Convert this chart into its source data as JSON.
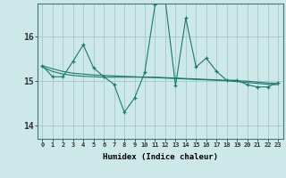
{
  "xlabel": "Humidex (Indice chaleur)",
  "ylabel": "",
  "background_color": "#cce8e8",
  "grid_color": "#aacccc",
  "line_color": "#1a7a6e",
  "xlim": [
    -0.5,
    23.5
  ],
  "ylim": [
    13.7,
    16.75
  ],
  "yticks": [
    14,
    15,
    16
  ],
  "xtick_labels": [
    "0",
    "1",
    "2",
    "3",
    "4",
    "5",
    "6",
    "7",
    "8",
    "9",
    "10",
    "11",
    "12",
    "13",
    "14",
    "15",
    "16",
    "17",
    "18",
    "19",
    "20",
    "21",
    "22",
    "23"
  ],
  "main_series": [
    15.35,
    15.1,
    15.1,
    15.45,
    15.82,
    15.3,
    15.1,
    14.93,
    14.3,
    14.62,
    15.2,
    16.72,
    16.82,
    14.9,
    16.42,
    15.32,
    15.52,
    15.22,
    15.02,
    15.02,
    14.92,
    14.87,
    14.87,
    14.97
  ],
  "smooth_series1": [
    15.35,
    15.28,
    15.22,
    15.18,
    15.16,
    15.14,
    15.13,
    15.12,
    15.11,
    15.1,
    15.09,
    15.08,
    15.07,
    15.06,
    15.05,
    15.04,
    15.03,
    15.02,
    15.01,
    14.99,
    14.97,
    14.95,
    14.93,
    14.92
  ],
  "smooth_series2": [
    15.32,
    15.22,
    15.16,
    15.13,
    15.11,
    15.1,
    15.09,
    15.09,
    15.09,
    15.09,
    15.09,
    15.09,
    15.08,
    15.07,
    15.06,
    15.05,
    15.04,
    15.03,
    15.02,
    15.01,
    15.0,
    14.98,
    14.96,
    14.95
  ]
}
